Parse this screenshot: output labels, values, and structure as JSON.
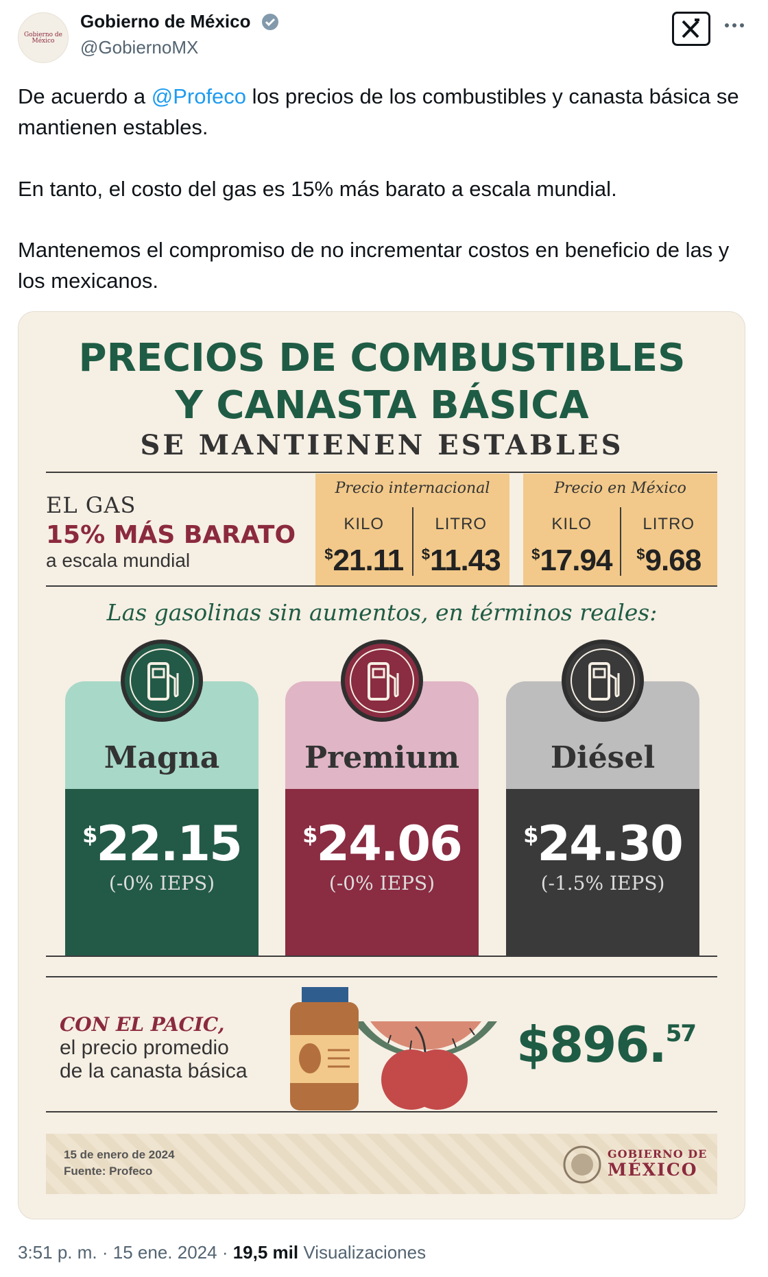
{
  "author": {
    "avatar_label": "Gobierno de México",
    "name": "Gobierno de México",
    "handle": "@GobiernoMX"
  },
  "tweet": {
    "paragraph_1": {
      "before": "De acuerdo a ",
      "mention": "@Profeco",
      "after": " los precios de los combustibles y canasta básica se mantienen estables."
    },
    "paragraph_2": "En tanto, el costo del gas es 15% más barato a escala mundial.",
    "paragraph_3": "Mantenemos el compromiso de no incrementar costos en beneficio de las y los mexicanos."
  },
  "infographic": {
    "title_lines": [
      "PRECIOS DE COMBUSTIBLES",
      "Y CANASTA BÁSICA"
    ],
    "subtitle": "SE MANTIENEN ESTABLES",
    "currency": "$",
    "gas": {
      "label": "EL GAS",
      "highlight": "15% MÁS BARATO",
      "note": "a escala mundial",
      "units": [
        "KILO",
        "LITRO"
      ],
      "columns": [
        {
          "heading": "Precio internacional",
          "prices": [
            "21.11",
            "11.43"
          ]
        },
        {
          "heading": "Precio en México",
          "prices": [
            "17.94",
            "9.68"
          ]
        }
      ]
    },
    "gasoline_heading": "Las gasolinas sin aumentos, en términos reales:",
    "fuels": [
      {
        "name": "Magna",
        "price": "22.15",
        "ieps": "(-0% IEPS)"
      },
      {
        "name": "Premium",
        "price": "24.06",
        "ieps": "(-0% IEPS)"
      },
      {
        "name": "Diésel",
        "price": "24.30",
        "ieps": "(-1.5% IEPS)"
      }
    ],
    "basket": {
      "lead": "CON EL PACIC,",
      "lines": [
        "el precio promedio",
        "de la canasta básica"
      ],
      "price_main": "896.",
      "price_cents": "57"
    },
    "footer": {
      "date": "15 de enero de 2024",
      "source": "Fuente: Profeco",
      "logo_lines": [
        "GOBIERNO DE",
        "MÉXICO"
      ]
    }
  },
  "meta": {
    "time": "3:51 p. m.",
    "separator": "·",
    "date": "15 ene. 2024",
    "views": "19,5 mil",
    "views_label": "Visualizaciones"
  }
}
